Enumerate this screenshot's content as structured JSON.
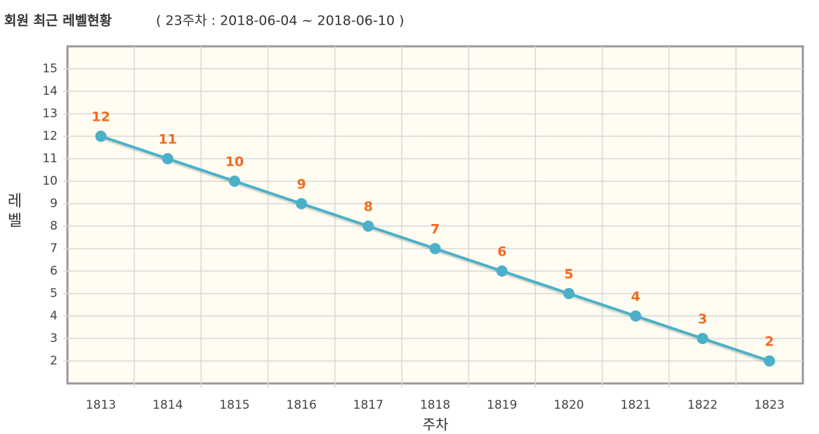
{
  "chart_data": {
    "type": "line",
    "title": "회원 최근 레벨현황",
    "subtitle": "( 23주차 : 2018-06-04 ~ 2018-06-10 )",
    "y_label": "레벨",
    "x_label": "주차",
    "categories": [
      "1813",
      "1814",
      "1815",
      "1816",
      "1817",
      "1818",
      "1819",
      "1820",
      "1821",
      "1822",
      "1823"
    ],
    "values": [
      12,
      11,
      10,
      9,
      8,
      7,
      6,
      5,
      4,
      3,
      2
    ],
    "color": "#4bb0c8",
    "label_color": "#f26b1d",
    "ylim": [
      1,
      16
    ],
    "yticks": [
      2,
      3,
      4,
      5,
      6,
      7,
      8,
      9,
      10,
      11,
      12,
      13,
      14,
      15
    ],
    "grid": true
  }
}
